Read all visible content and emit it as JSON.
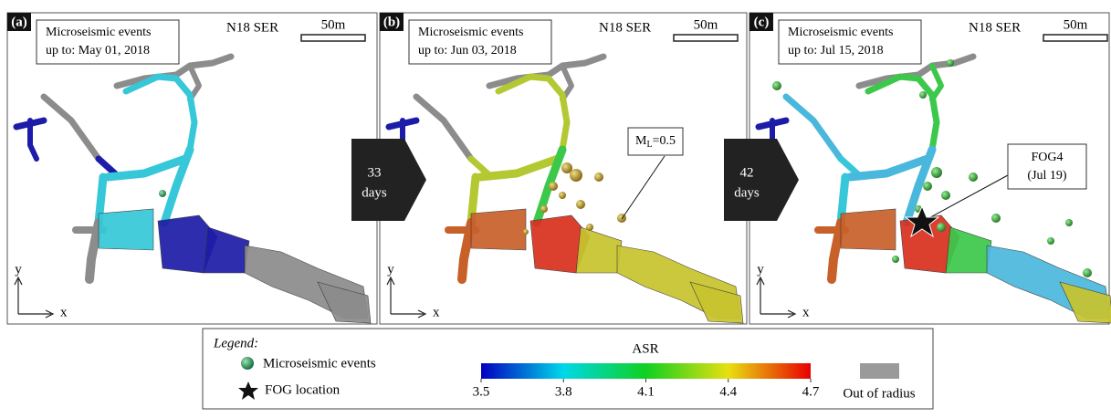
{
  "panels": [
    {
      "label": "(a)",
      "caption": [
        "Microseismic events",
        "up to: May 01, 2018"
      ],
      "site": "N18 SER",
      "scale": "50m",
      "axes": {
        "y": "y",
        "x": "x"
      }
    },
    {
      "label": "(b)",
      "caption": [
        "Microseismic events",
        "up to: Jun 03, 2018"
      ],
      "site": "N18 SER",
      "scale": "50m",
      "axes": {
        "y": "y",
        "x": "x"
      }
    },
    {
      "label": "(c)",
      "caption": [
        "Microseismic events",
        "up to: Jul 15, 2018"
      ],
      "site": "N18 SER",
      "scale": "50m",
      "axes": {
        "y": "y",
        "x": "x"
      }
    }
  ],
  "transitions": [
    {
      "number": "33",
      "unit": "days"
    },
    {
      "number": "42",
      "unit": "days"
    }
  ],
  "annotations": {
    "magnitude": {
      "symbol": "M",
      "subscript": "L",
      "rest": "=0.5"
    },
    "fog": {
      "name": "FOG4",
      "date": "(Jul 19)"
    }
  },
  "legend": {
    "title": "Legend:",
    "events": "Microseismic events",
    "fog": "FOG location",
    "out_of_radius": "Out of radius",
    "colorbar": {
      "title": "ASR",
      "ticks": [
        3.5,
        3.8,
        4.1,
        4.4,
        4.7
      ],
      "colors": [
        "#0000c0",
        "#00d8e8",
        "#10d020",
        "#e8e010",
        "#e80000"
      ]
    }
  }
}
